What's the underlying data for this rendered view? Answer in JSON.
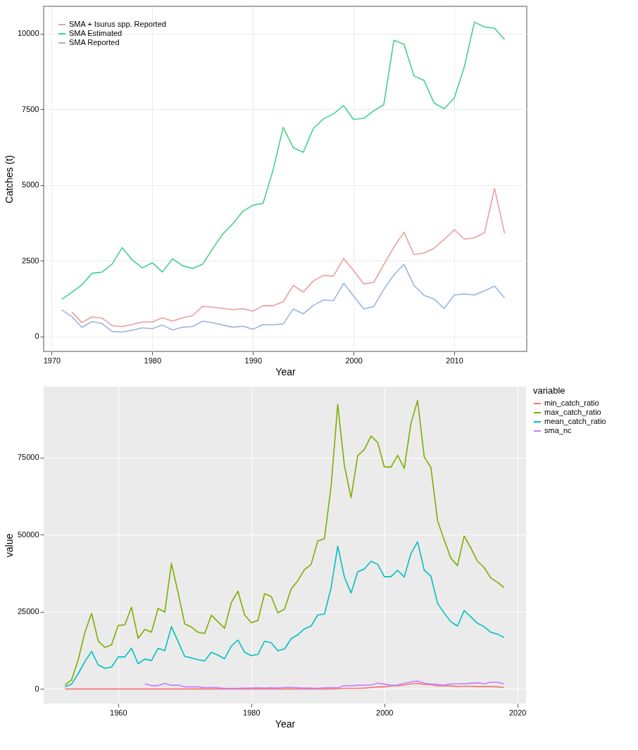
{
  "chart_data": [
    {
      "type": "line",
      "xlabel": "Year",
      "ylabel": "Catches (t)",
      "legend": "top left",
      "grid": true,
      "x": [
        1971,
        1972,
        1973,
        1974,
        1975,
        1976,
        1977,
        1978,
        1979,
        1980,
        1981,
        1982,
        1983,
        1984,
        1985,
        1986,
        1987,
        1988,
        1989,
        1990,
        1991,
        1992,
        1993,
        1994,
        1995,
        1996,
        1997,
        1998,
        1999,
        2000,
        2001,
        2002,
        2003,
        2004,
        2005,
        2006,
        2007,
        2008,
        2009,
        2010,
        2011,
        2012,
        2013,
        2014,
        2015
      ],
      "xlim": [
        1969.2,
        2017.2
      ],
      "xticks": [
        1970,
        1980,
        1990,
        2000,
        2010
      ],
      "ylim": [
        -500,
        10900
      ],
      "yticks": [
        0,
        2500,
        5000,
        7500,
        10000
      ],
      "series": [
        {
          "name": "SMA + Isurus spp. Reported",
          "color": "#e8a0a0",
          "values": [
            null,
            800,
            450,
            640,
            600,
            350,
            320,
            390,
            470,
            470,
            610,
            500,
            610,
            680,
            990,
            960,
            920,
            880,
            910,
            830,
            1010,
            1010,
            1140,
            1680,
            1460,
            1830,
            2010,
            1990,
            2570,
            2170,
            1730,
            1780,
            2370,
            2940,
            3440,
            2700,
            2750,
            2910,
            3200,
            3520,
            3210,
            3250,
            3420,
            4880,
            3400
          ]
        },
        {
          "name": "SMA Estimated",
          "color": "#45d28a",
          "values": [
            1220,
            1450,
            1700,
            2080,
            2120,
            2380,
            2930,
            2520,
            2260,
            2430,
            2120,
            2560,
            2330,
            2240,
            2380,
            2900,
            3380,
            3720,
            4130,
            4330,
            4390,
            5500,
            6900,
            6230,
            6080,
            6870,
            7180,
            7350,
            7620,
            7160,
            7200,
            7450,
            7650,
            9780,
            9650,
            8600,
            8450,
            7700,
            7520,
            7870,
            8900,
            10380,
            10220,
            10180,
            9800
          ]
        },
        {
          "name": "SMA Reported",
          "color": "#9cb4e2",
          "values": [
            870,
            650,
            290,
            490,
            420,
            160,
            140,
            200,
            280,
            250,
            370,
            210,
            300,
            320,
            500,
            450,
            370,
            300,
            330,
            230,
            390,
            380,
            410,
            900,
            740,
            1020,
            1200,
            1180,
            1750,
            1330,
            900,
            980,
            1550,
            2030,
            2380,
            1680,
            1350,
            1230,
            920,
            1360,
            1400,
            1360,
            1500,
            1660,
            1270
          ]
        }
      ]
    },
    {
      "type": "line",
      "xlabel": "Year",
      "ylabel": "value",
      "legend": "right",
      "legend_title": "variable",
      "grid": true,
      "x": [
        1952,
        1953,
        1954,
        1955,
        1956,
        1957,
        1958,
        1959,
        1960,
        1961,
        1962,
        1963,
        1964,
        1965,
        1966,
        1967,
        1968,
        1969,
        1970,
        1971,
        1972,
        1973,
        1974,
        1975,
        1976,
        1977,
        1978,
        1979,
        1980,
        1981,
        1982,
        1983,
        1984,
        1985,
        1986,
        1987,
        1988,
        1989,
        1990,
        1991,
        1992,
        1993,
        1994,
        1995,
        1996,
        1997,
        1998,
        1999,
        2000,
        2001,
        2002,
        2003,
        2004,
        2005,
        2006,
        2007,
        2008,
        2009,
        2010,
        2011,
        2012,
        2013,
        2014,
        2015,
        2016,
        2017,
        2018
      ],
      "xlim": [
        1948.8,
        2021.3
      ],
      "xticks": [
        1960,
        1980,
        2000,
        2020
      ],
      "ylim": [
        -4700,
        98000
      ],
      "yticks": [
        0,
        25000,
        50000,
        75000
      ],
      "series": [
        {
          "name": "min_catch_ratio",
          "color": "#f8766d",
          "values": [
            0,
            0,
            0,
            0,
            0,
            0,
            0,
            0,
            0,
            0,
            0,
            0,
            0,
            0,
            0,
            0,
            0,
            0,
            0,
            0,
            0,
            0,
            0,
            0,
            0,
            0,
            0,
            0,
            0,
            0,
            0,
            0,
            0,
            0,
            0,
            0,
            0,
            0,
            0,
            0,
            0,
            100,
            200,
            200,
            200,
            300,
            500,
            700,
            700,
            1000,
            1100,
            1300,
            1700,
            1800,
            1500,
            1400,
            1000,
            1000,
            1100,
            800,
            900,
            900,
            800,
            800,
            800,
            700,
            500
          ]
        },
        {
          "name": "max_catch_ratio",
          "color": "#7cae00",
          "values": [
            1300,
            3000,
            9500,
            18400,
            24500,
            15600,
            13500,
            14300,
            20600,
            20800,
            26500,
            16400,
            19300,
            18400,
            26100,
            24900,
            40700,
            31300,
            21100,
            20100,
            18400,
            18000,
            23900,
            21800,
            19700,
            28000,
            31700,
            24000,
            21500,
            22200,
            30900,
            30000,
            24700,
            25900,
            32400,
            35100,
            38700,
            40400,
            48000,
            48700,
            65700,
            92200,
            72400,
            62000,
            75600,
            77600,
            82000,
            79900,
            72000,
            71900,
            75700,
            71500,
            86100,
            93500,
            75200,
            71800,
            54600,
            48300,
            42400,
            40000,
            49600,
            45700,
            41400,
            39400,
            36000,
            34600,
            32900
          ]
        },
        {
          "name": "mean_catch_ratio",
          "color": "#00bfc4",
          "values": [
            700,
            1600,
            5000,
            8900,
            12200,
            7800,
            6700,
            7100,
            10400,
            10400,
            13200,
            8200,
            9700,
            9200,
            13200,
            12400,
            20200,
            15400,
            10600,
            10100,
            9500,
            9100,
            11900,
            11000,
            9800,
            13900,
            15900,
            11900,
            10800,
            11200,
            15500,
            15000,
            12400,
            13000,
            16300,
            17600,
            19500,
            20400,
            24000,
            24300,
            32800,
            46300,
            36300,
            31100,
            38000,
            38900,
            41400,
            40400,
            36400,
            36400,
            38500,
            36300,
            43900,
            47700,
            38500,
            36600,
            27800,
            24600,
            21800,
            20400,
            25400,
            23400,
            21300,
            20200,
            18400,
            17800,
            16700
          ]
        },
        {
          "name": "sma_nc",
          "color": "#c77cff",
          "values": [
            null,
            null,
            null,
            null,
            null,
            null,
            null,
            null,
            null,
            null,
            null,
            null,
            1700,
            1100,
            1100,
            1800,
            1200,
            1300,
            700,
            700,
            700,
            400,
            500,
            400,
            200,
            200,
            200,
            300,
            300,
            400,
            300,
            400,
            300,
            500,
            500,
            400,
            300,
            300,
            200,
            400,
            400,
            400,
            1100,
            1000,
            1200,
            1300,
            1300,
            1900,
            1600,
            1200,
            1300,
            1800,
            2300,
            2600,
            1900,
            1600,
            1500,
            1200,
            1700,
            1700,
            1700,
            1900,
            2000,
            1700,
            2200,
            2200,
            1700
          ]
        }
      ]
    }
  ]
}
